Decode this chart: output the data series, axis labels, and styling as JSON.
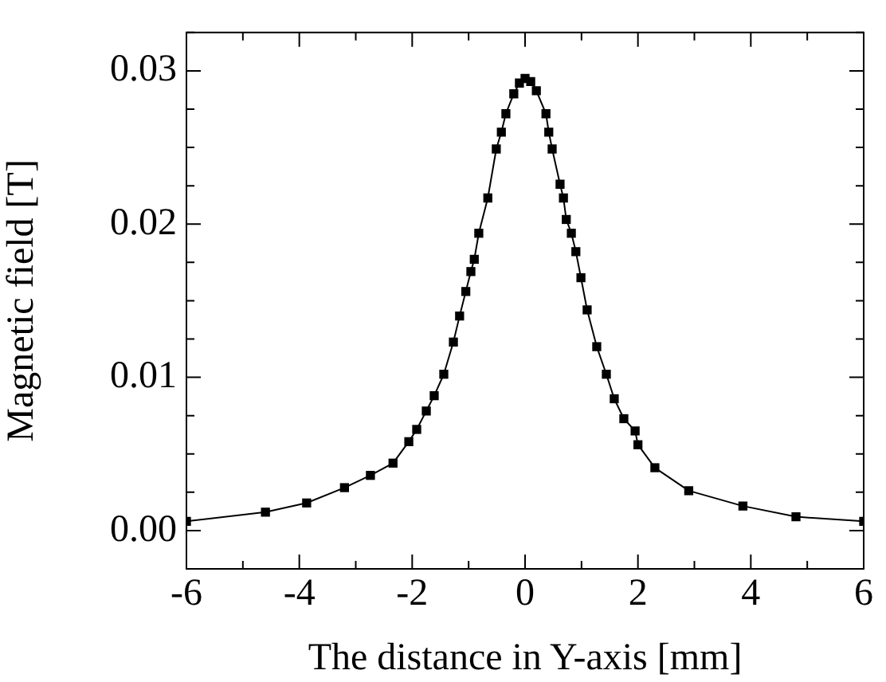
{
  "chart_data": {
    "type": "line",
    "xlabel": "The distance in Y-axis [mm]",
    "ylabel": "Magnetic field [T]",
    "x": [
      -6,
      -4.6,
      -3.87,
      -3.2,
      -2.74,
      -2.34,
      -2.06,
      -1.92,
      -1.75,
      -1.61,
      -1.44,
      -1.27,
      -1.16,
      -1.05,
      -0.96,
      -0.9,
      -0.82,
      -0.66,
      -0.51,
      -0.42,
      -0.34,
      -0.2,
      -0.1,
      0,
      0.1,
      0.2,
      0.37,
      0.42,
      0.48,
      0.62,
      0.68,
      0.73,
      0.82,
      0.9,
      0.99,
      1.1,
      1.27,
      1.44,
      1.58,
      1.75,
      1.95,
      2.0,
      2.3,
      2.9,
      3.86,
      4.8,
      6
    ],
    "series": [
      {
        "color": "#000000",
        "values": [
          0.0006,
          0.0012,
          0.0018,
          0.0028,
          0.0036,
          0.0044,
          0.0058,
          0.0066,
          0.0078,
          0.0088,
          0.0102,
          0.0123,
          0.014,
          0.0156,
          0.0169,
          0.0177,
          0.0194,
          0.0217,
          0.0249,
          0.026,
          0.0272,
          0.0285,
          0.0292,
          0.0295,
          0.0293,
          0.0287,
          0.0272,
          0.026,
          0.0249,
          0.0226,
          0.0217,
          0.0203,
          0.0194,
          0.0182,
          0.0165,
          0.0144,
          0.012,
          0.0102,
          0.0086,
          0.0073,
          0.0065,
          0.0056,
          0.0041,
          0.0026,
          0.0016,
          0.0009,
          0.0006
        ]
      }
    ],
    "xlim": [
      -6,
      6
    ],
    "ylim": [
      -0.0025,
      0.0325
    ],
    "xticks": [
      -6,
      {
        "value": -5,
        "label": null
      },
      -4,
      {
        "value": -3,
        "label": null
      },
      -2,
      {
        "value": -1,
        "label": null
      },
      0,
      {
        "value": 1,
        "label": null
      },
      2,
      {
        "value": 3,
        "label": null
      },
      4,
      {
        "value": 5,
        "label": null
      },
      6
    ],
    "yticks": [
      {
        "value": -0.0025,
        "label": null
      },
      {
        "value": 0,
        "label": "0.00"
      },
      {
        "value": 0.0025,
        "label": null
      },
      {
        "value": 0.005,
        "label": null
      },
      {
        "value": 0.0075,
        "label": null
      },
      {
        "value": 0.01,
        "label": "0.01"
      },
      {
        "value": 0.0125,
        "label": null
      },
      {
        "value": 0.015,
        "label": null
      },
      {
        "value": 0.0175,
        "label": null
      },
      {
        "value": 0.02,
        "label": "0.02"
      },
      {
        "value": 0.0225,
        "label": null
      },
      {
        "value": 0.025,
        "label": null
      },
      {
        "value": 0.0275,
        "label": null
      },
      {
        "value": 0.03,
        "label": "0.03"
      },
      {
        "value": 0.0325,
        "label": null
      }
    ],
    "grid": false,
    "legend": false,
    "marker": "square",
    "line_style": "solid"
  }
}
